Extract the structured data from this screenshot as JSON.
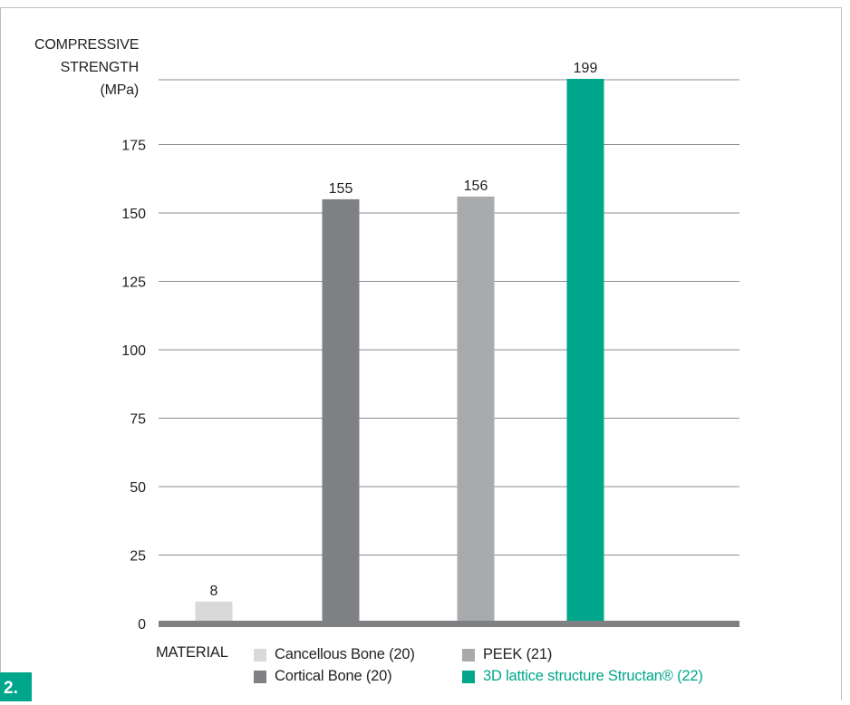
{
  "chart_data": {
    "type": "bar",
    "categories": [
      "Cancellous Bone (20)",
      "Cortical Bone (20)",
      "PEEK (21)",
      "3D lattice structure Structan® (22)"
    ],
    "values": [
      8,
      155,
      156,
      199
    ],
    "bar_colors": [
      "#d9d9d9",
      "#7f8083",
      "#a9aaac",
      "#00a68b"
    ],
    "ylabel": "COMPRESSIVE STRENGTH (MPa)",
    "ylabel_lines": [
      "COMPRESSIVE",
      "STRENGTH",
      "(MPa)"
    ],
    "xlabel": "MATERIAL",
    "yticks": [
      0,
      25,
      50,
      75,
      100,
      125,
      150,
      175
    ],
    "ylim": [
      0,
      210
    ],
    "grid": true,
    "legend_position": "bottom"
  },
  "legend": {
    "items": [
      {
        "label": "Cancellous Bone (20)",
        "color": "#d9d9d9"
      },
      {
        "label": "PEEK (21)",
        "color": "#a9aaac"
      },
      {
        "label": "Cortical Bone (20)",
        "color": "#7f8083"
      },
      {
        "label": "3D lattice structure Structan® (22)",
        "color": "#00a68b",
        "highlight": true
      }
    ]
  },
  "figure_label": "2."
}
